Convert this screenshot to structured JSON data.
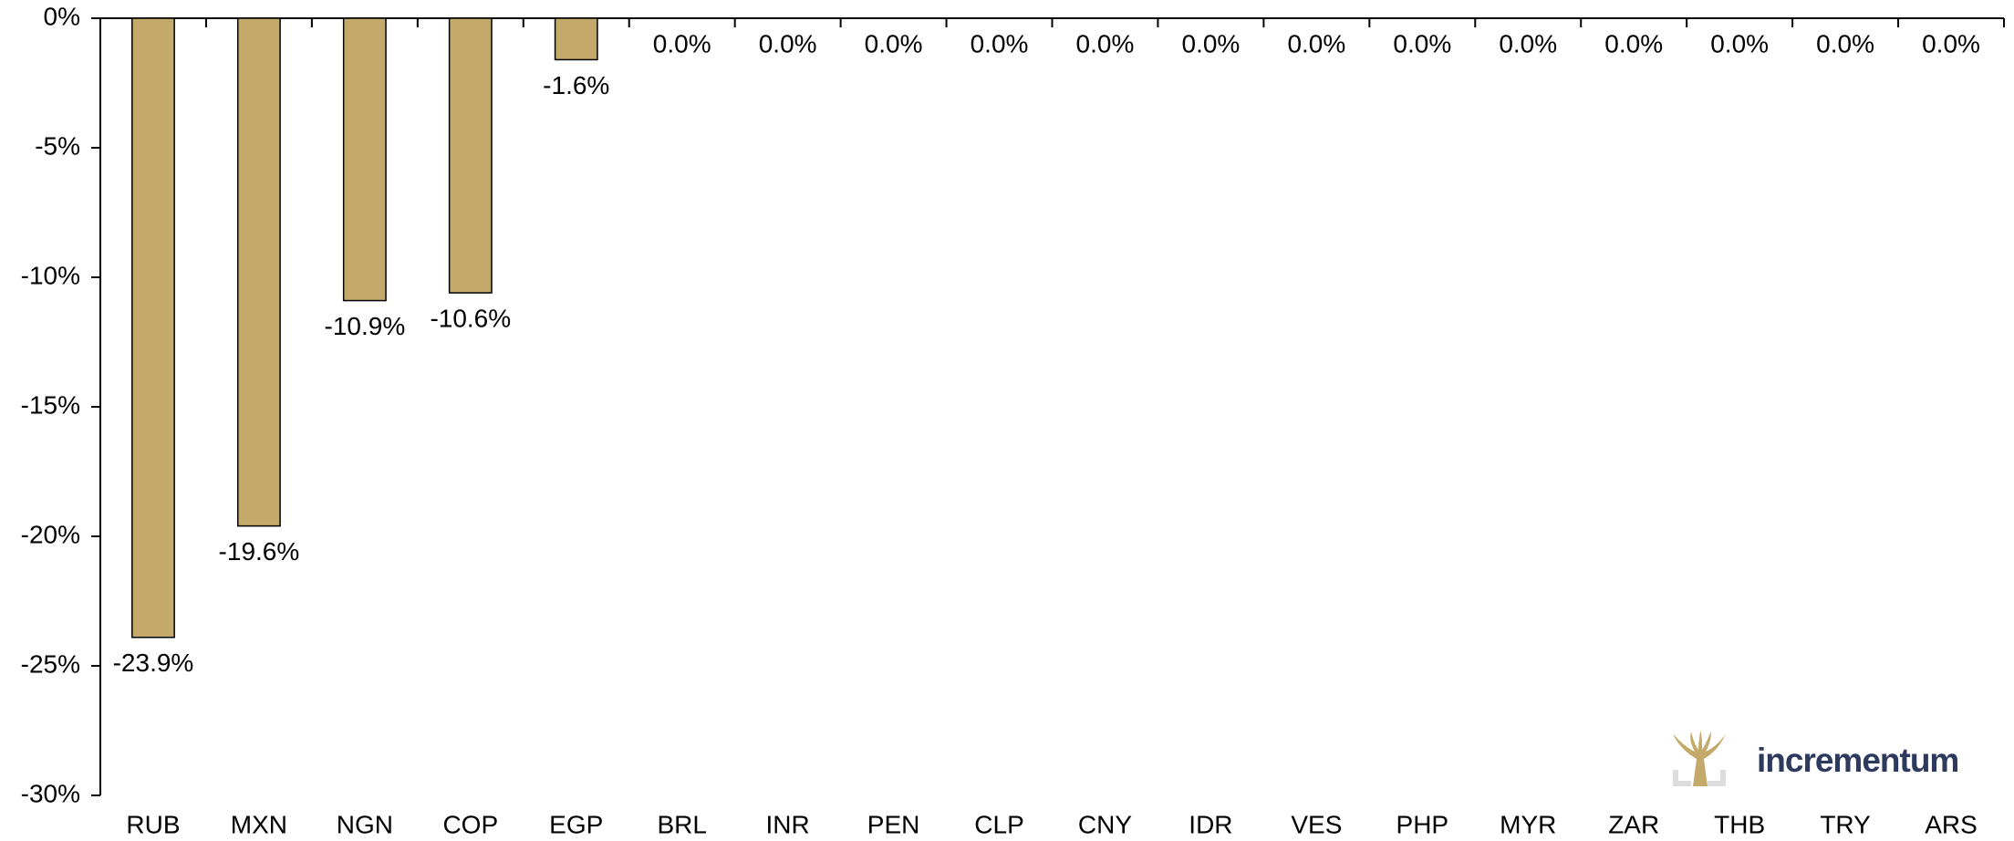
{
  "chart_data": {
    "type": "bar",
    "categories": [
      "RUB",
      "MXN",
      "NGN",
      "COP",
      "EGP",
      "BRL",
      "INR",
      "PEN",
      "CLP",
      "CNY",
      "IDR",
      "VES",
      "PHP",
      "MYR",
      "ZAR",
      "THB",
      "TRY",
      "ARS"
    ],
    "values": [
      -23.9,
      -19.6,
      -10.9,
      -10.6,
      -1.6,
      0,
      0,
      0,
      0,
      0,
      0,
      0,
      0,
      0,
      0,
      0,
      0,
      0
    ],
    "value_labels": [
      "-23.9%",
      "-19.6%",
      "-10.9%",
      "-10.6%",
      "-1.6%",
      "0.0%",
      "0.0%",
      "0.0%",
      "0.0%",
      "0.0%",
      "0.0%",
      "0.0%",
      "0.0%",
      "0.0%",
      "0.0%",
      "0.0%",
      "0.0%",
      "0.0%"
    ],
    "color": "#c4aa6a",
    "ylim": [
      -30,
      0
    ],
    "yticks": [
      {
        "value": 0,
        "label": "0%"
      },
      {
        "value": -5,
        "label": "-5%"
      },
      {
        "value": -10,
        "label": "-10%"
      },
      {
        "value": -15,
        "label": "-15%"
      },
      {
        "value": -20,
        "label": "-20%"
      },
      {
        "value": -25,
        "label": "-25%"
      },
      {
        "value": -30,
        "label": "-30%"
      }
    ]
  },
  "logo": {
    "text": "incrementum"
  }
}
